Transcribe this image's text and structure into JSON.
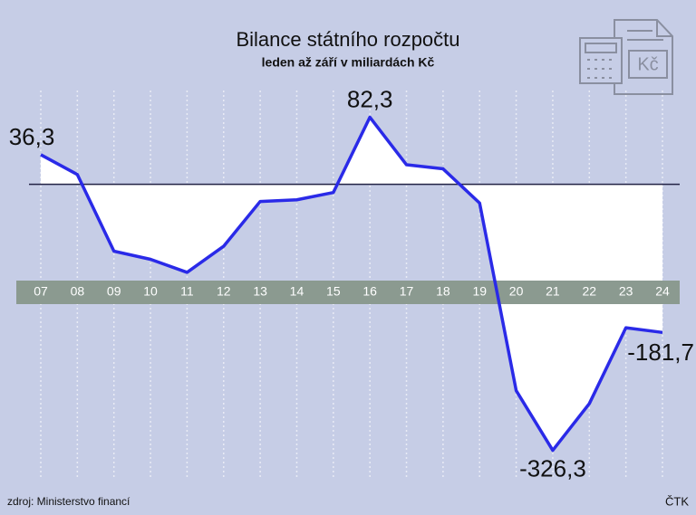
{
  "chart_data": {
    "type": "line",
    "title": "Bilance státního rozpočtu",
    "subtitle": "leden až září v miliardách Kč",
    "categories": [
      "07",
      "08",
      "09",
      "10",
      "11",
      "12",
      "13",
      "14",
      "15",
      "16",
      "17",
      "18",
      "19",
      "20",
      "21",
      "22",
      "23",
      "24"
    ],
    "values": [
      36.3,
      12,
      -82,
      -92,
      -108,
      -76,
      -21,
      -19,
      -10,
      82.3,
      24,
      19,
      -23,
      -253,
      -326.3,
      -269,
      -176,
      -181.7
    ],
    "value_labels": [
      "36,3",
      null,
      null,
      null,
      null,
      null,
      null,
      null,
      null,
      "82,3",
      null,
      null,
      null,
      null,
      "-326,3",
      null,
      null,
      "-181,7"
    ],
    "color": "#2a2ae8",
    "ylim": [
      -359,
      215
    ],
    "source": "zdroj: Ministerstvo financí",
    "credit": "ČTK",
    "icon_text": "Kč"
  }
}
